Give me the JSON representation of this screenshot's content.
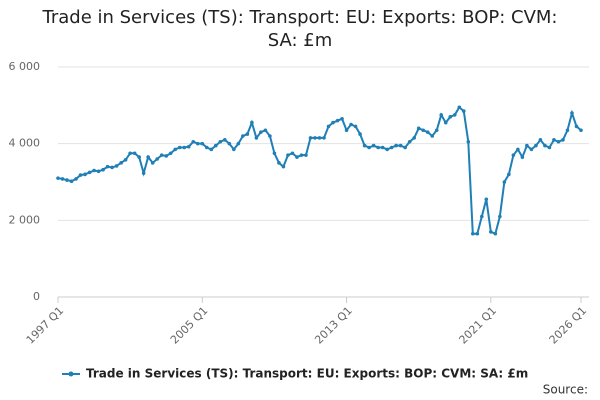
{
  "chart_data": {
    "type": "line",
    "title": "Trade in Services (TS): Transport: EU: Exports: BOP: CVM: SA: £m",
    "categories": [
      "1997 Q1",
      null,
      null,
      null,
      null,
      null,
      null,
      null,
      null,
      null,
      null,
      null,
      null,
      null,
      null,
      null,
      null,
      null,
      null,
      null,
      null,
      null,
      null,
      null,
      null,
      null,
      null,
      null,
      null,
      null,
      null,
      null,
      "2005 Q1",
      null,
      null,
      null,
      null,
      null,
      null,
      null,
      null,
      null,
      null,
      null,
      null,
      null,
      null,
      null,
      null,
      null,
      null,
      null,
      null,
      null,
      null,
      null,
      null,
      null,
      null,
      null,
      null,
      null,
      null,
      null,
      "2013 Q1",
      null,
      null,
      null,
      null,
      null,
      null,
      null,
      null,
      null,
      null,
      null,
      null,
      null,
      null,
      null,
      null,
      null,
      null,
      null,
      null,
      null,
      null,
      null,
      null,
      null,
      null,
      null,
      null,
      null,
      null,
      null,
      "2021 Q1",
      null,
      null,
      null,
      null,
      null,
      null,
      null,
      null,
      null,
      null,
      null,
      null,
      null,
      null,
      null,
      null,
      null,
      null,
      null,
      "2026 Q1"
    ],
    "series": [
      {
        "name": "Trade in Services (TS): Transport: EU: Exports: BOP: CVM: SA: £m",
        "color": "#1f7fb6",
        "values": [
          3100,
          3080,
          3050,
          3020,
          3080,
          3180,
          3200,
          3250,
          3300,
          3280,
          3320,
          3400,
          3380,
          3420,
          3500,
          3580,
          3750,
          3750,
          3650,
          3230,
          3650,
          3500,
          3600,
          3700,
          3680,
          3750,
          3850,
          3900,
          3900,
          3920,
          4050,
          4000,
          4000,
          3900,
          3850,
          3950,
          4050,
          4100,
          4000,
          3850,
          4000,
          4200,
          4250,
          4550,
          4150,
          4300,
          4350,
          4200,
          3750,
          3500,
          3400,
          3700,
          3750,
          3650,
          3700,
          3700,
          4150,
          4150,
          4150,
          4150,
          4450,
          4550,
          4600,
          4650,
          4350,
          4500,
          4450,
          4250,
          3950,
          3900,
          3950,
          3900,
          3900,
          3850,
          3900,
          3950,
          3950,
          3900,
          4050,
          4150,
          4400,
          4350,
          4300,
          4200,
          4350,
          4750,
          4550,
          4700,
          4750,
          4950,
          4850,
          4050,
          1650,
          1650,
          2100,
          2550,
          1700,
          1650,
          2100,
          3000,
          3200,
          3700,
          3850,
          3650,
          3950,
          3850,
          3950,
          4100,
          3950,
          3900,
          4100,
          4050,
          4100,
          4350,
          4800,
          4450,
          4350
        ]
      }
    ],
    "ylim": [
      0,
      6000
    ],
    "yticks": [
      0,
      {
        "value": 2000,
        "label": "2 000"
      },
      {
        "value": 4000,
        "label": "4 000"
      },
      {
        "value": 6000,
        "label": "6 000"
      }
    ],
    "grid": true,
    "source": "Source:"
  }
}
